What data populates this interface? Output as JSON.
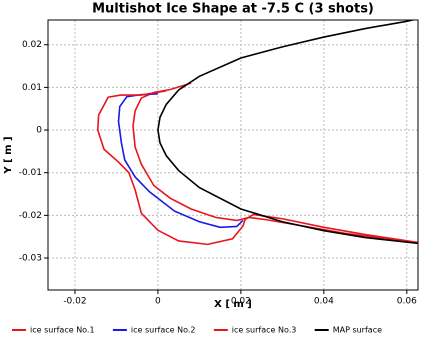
{
  "chart_data": {
    "type": "line",
    "title": "Multishot Ice Shape at -7.5 C (3 shots)",
    "x_label": "X [ m ]",
    "y_label": "Y [ m ]",
    "xlim": [
      -0.0265,
      0.0627
    ],
    "ylim": [
      -0.0375,
      0.0258
    ],
    "xticks": [
      -0.02,
      0,
      0.02,
      0.04,
      0.06
    ],
    "yticks": [
      0.02,
      0.01,
      0,
      -0.01,
      -0.02,
      -0.03
    ],
    "grid": true,
    "series": [
      {
        "name": "ice surface No.1",
        "color": "#e8141e",
        "x": [
          0.008,
          0.003,
          -0.001,
          -0.004,
          -0.0055,
          -0.006,
          -0.0055,
          -0.004,
          -0.001,
          0.003,
          0.008,
          0.014,
          0.019,
          0.022,
          0.026,
          0.035,
          0.045,
          0.055,
          0.063
        ],
        "values": [
          0.011,
          0.0095,
          0.0088,
          0.0075,
          0.0045,
          0.001,
          -0.004,
          -0.008,
          -0.013,
          -0.016,
          -0.0185,
          -0.0205,
          -0.0212,
          -0.0205,
          -0.021,
          -0.0225,
          -0.0242,
          -0.0255,
          -0.0266
        ]
      },
      {
        "name": "ice surface No.2",
        "color": "#1a1ae6",
        "x": [
          0.0,
          -0.004,
          -0.0075,
          -0.0092,
          -0.0095,
          -0.0088,
          -0.008,
          -0.0055,
          -0.002,
          0.004,
          0.01,
          0.015,
          0.019,
          0.0205
        ],
        "values": [
          0.0085,
          0.0083,
          0.0078,
          0.0055,
          0.002,
          -0.003,
          -0.007,
          -0.011,
          -0.0145,
          -0.019,
          -0.0215,
          -0.0228,
          -0.0226,
          -0.0212
        ]
      },
      {
        "name": "ice surface No.3",
        "color": "#e8141e",
        "x": [
          0.002,
          -0.004,
          -0.009,
          -0.012,
          -0.0143,
          -0.0145,
          -0.013,
          -0.0095,
          -0.007,
          -0.0055,
          -0.004,
          0.0,
          0.005,
          0.012,
          0.018,
          0.0205,
          0.021,
          0.023,
          0.03,
          0.04,
          0.05,
          0.063
        ],
        "values": [
          0.0092,
          0.0082,
          0.0082,
          0.0077,
          0.0035,
          0.0,
          -0.0045,
          -0.0075,
          -0.01,
          -0.014,
          -0.0195,
          -0.0235,
          -0.026,
          -0.0268,
          -0.0255,
          -0.0225,
          -0.021,
          -0.0198,
          -0.0208,
          -0.0228,
          -0.0245,
          -0.0264
        ]
      },
      {
        "name": "MAP surface",
        "color": "#000000",
        "x": [
          0.063,
          0.06,
          0.05,
          0.04,
          0.03,
          0.02,
          0.01,
          0.005,
          0.002,
          0.0005,
          0.0,
          0.0005,
          0.002,
          0.005,
          0.01,
          0.02,
          0.03,
          0.04,
          0.05,
          0.063
        ],
        "values": [
          0.0262,
          0.0255,
          0.0238,
          0.0218,
          0.0195,
          0.0169,
          0.0126,
          0.0094,
          0.006,
          0.003,
          0.0,
          -0.003,
          -0.006,
          -0.0095,
          -0.0135,
          -0.0185,
          -0.0215,
          -0.0236,
          -0.0252,
          -0.0266
        ]
      }
    ]
  }
}
